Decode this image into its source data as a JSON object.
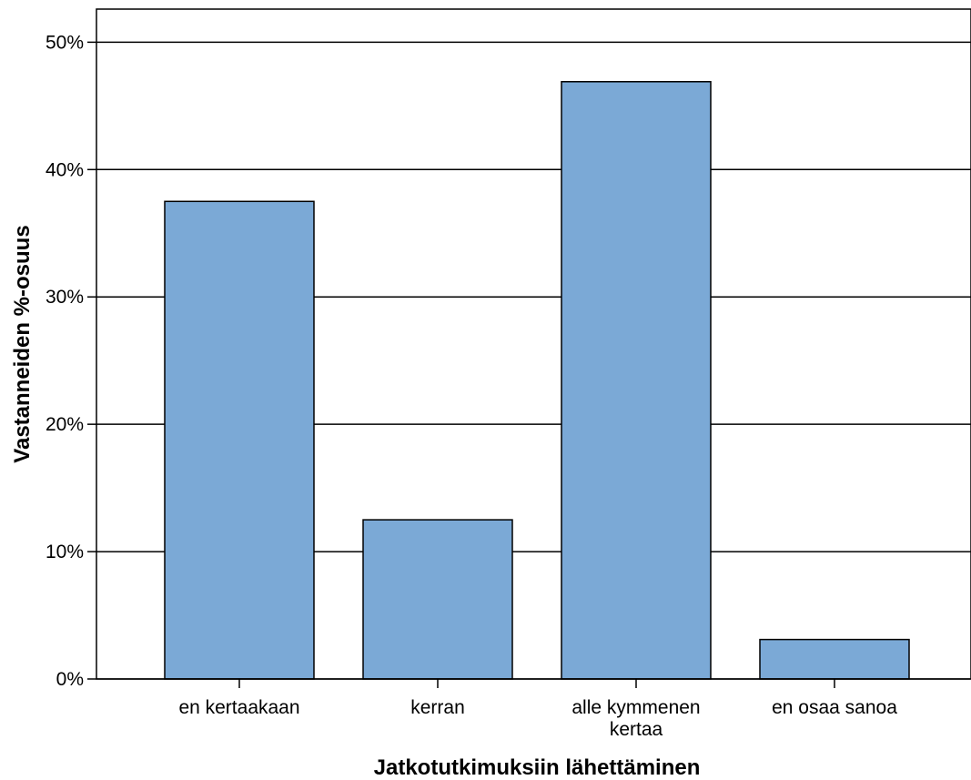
{
  "chart_data": {
    "type": "bar",
    "title": "",
    "xlabel": "Jatkotutkimuksiin lähettäminen",
    "ylabel": "Vastanneiden %-osuus",
    "categories": [
      [
        "en kertaakaan"
      ],
      [
        "kerran"
      ],
      [
        "alle kymmenen",
        "kertaa"
      ],
      [
        "en osaa sanoa"
      ]
    ],
    "values": [
      37.5,
      12.5,
      46.9,
      3.1
    ],
    "ylim": [
      0,
      52.6
    ],
    "yticks": [
      0,
      10,
      20,
      30,
      40,
      50
    ],
    "ytick_labels": [
      "0%",
      "10%",
      "20%",
      "30%",
      "40%",
      "50%"
    ],
    "grid": true,
    "colors": {
      "bar": "#7BA9D6",
      "outline": "#000000",
      "grid": "#000000"
    }
  }
}
